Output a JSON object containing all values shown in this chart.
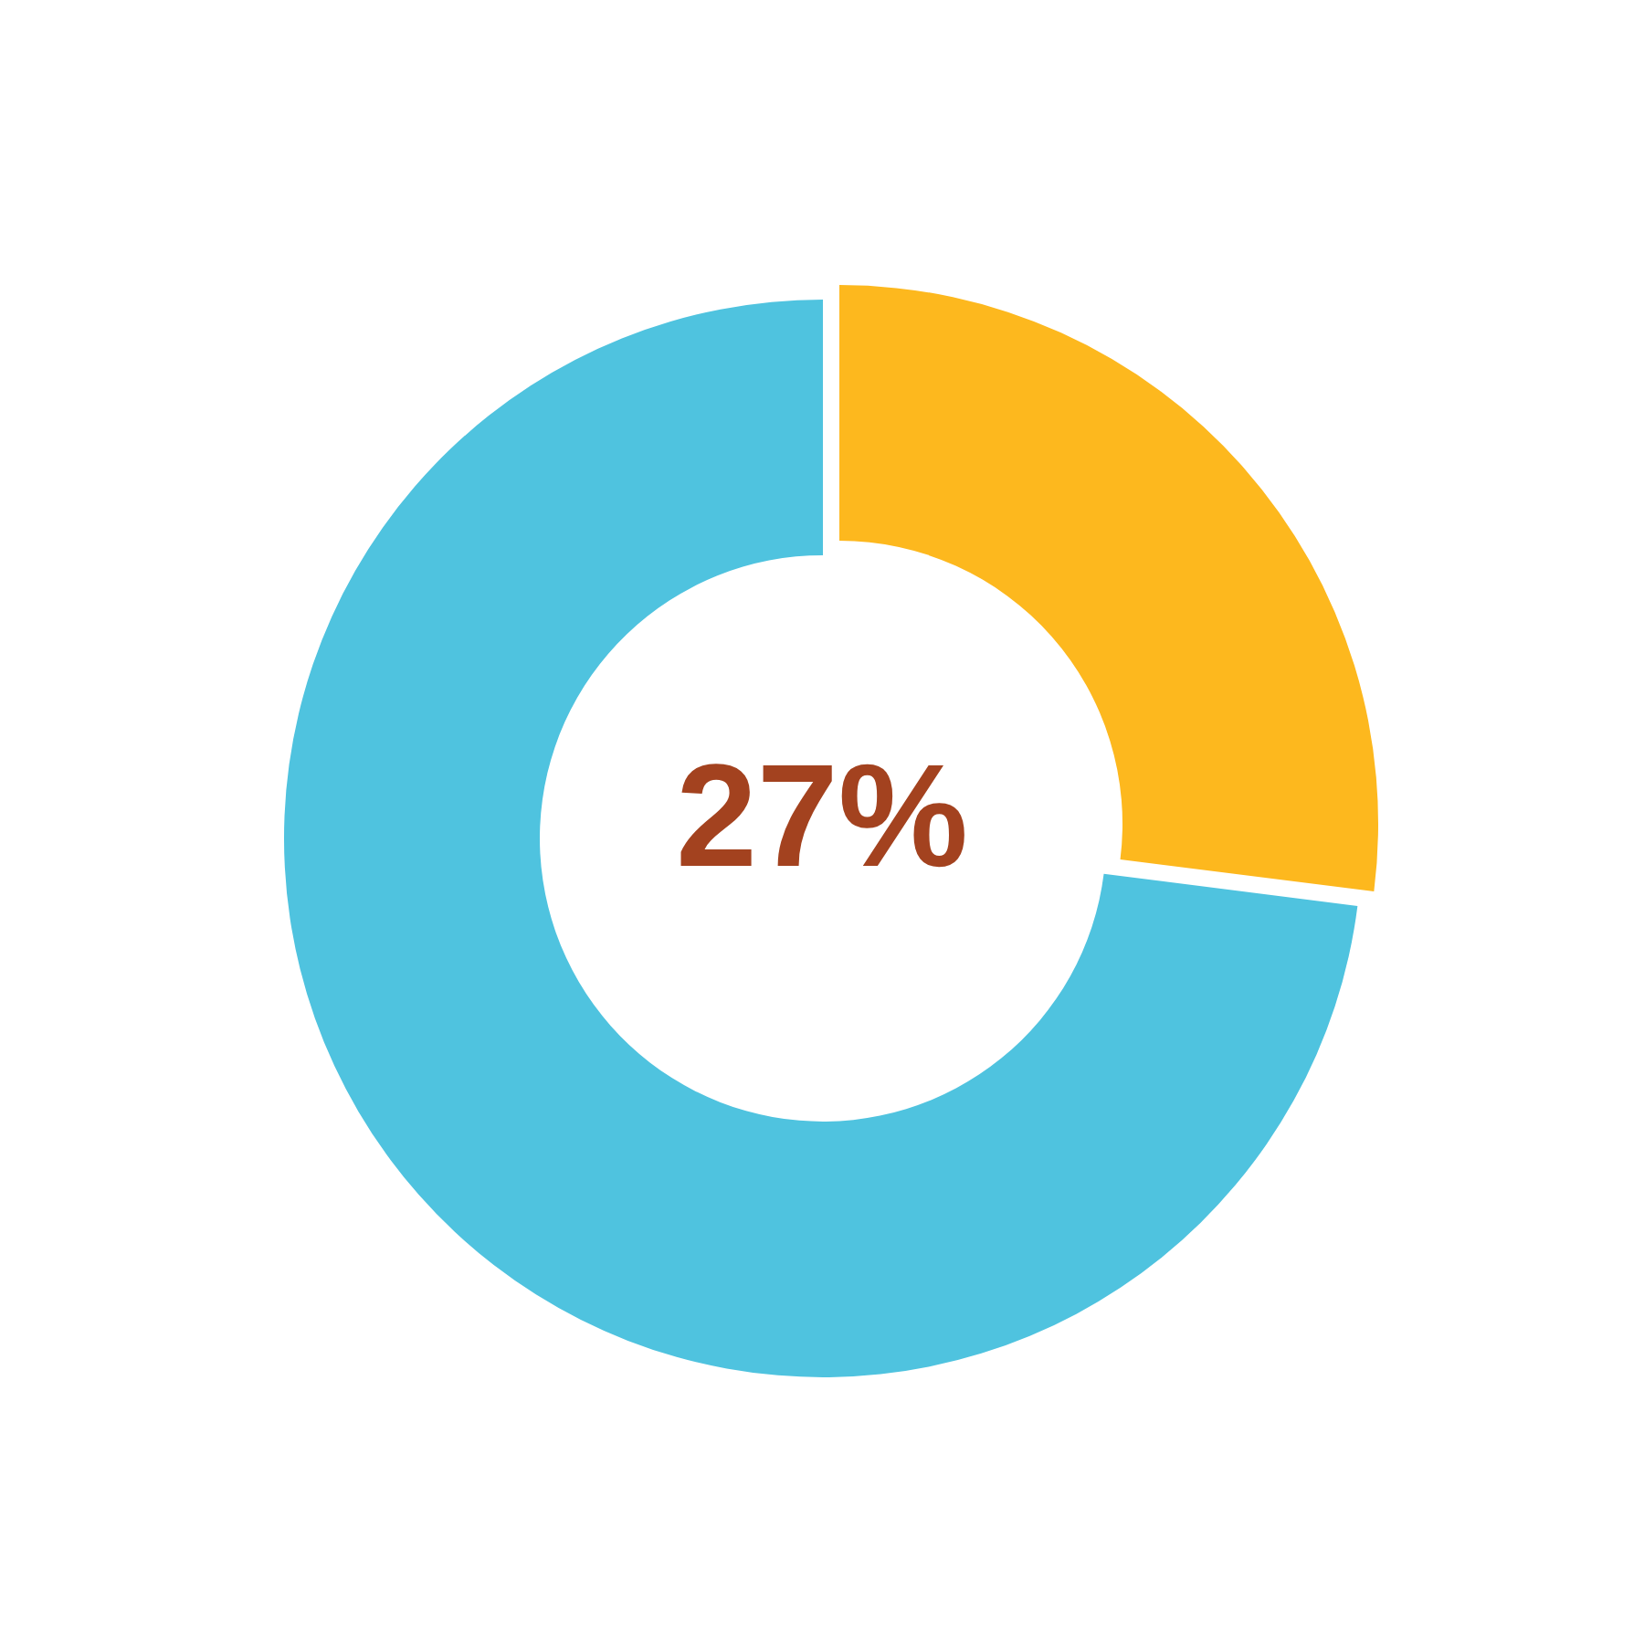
{
  "chart_data": {
    "type": "donut",
    "categories": [
      null,
      null
    ],
    "values": [
      27,
      73
    ],
    "colors": [
      "#fdb81e",
      "#4fc3df"
    ],
    "annotations": [
      "27%"
    ],
    "legend": false
  }
}
